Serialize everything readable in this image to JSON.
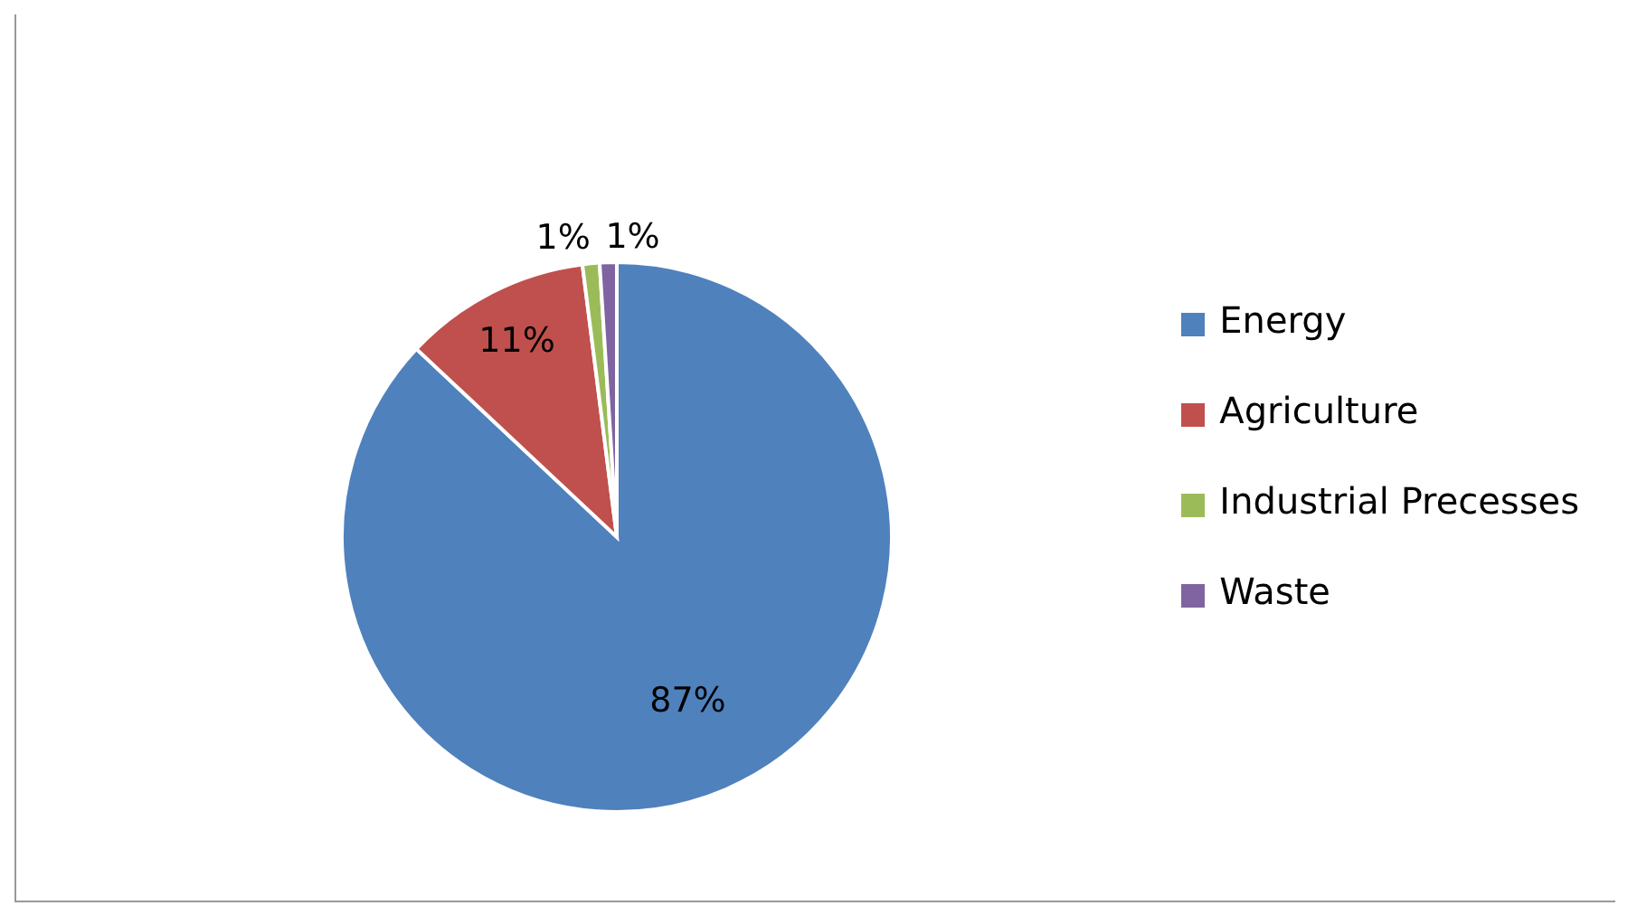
{
  "chart_data": {
    "type": "pie",
    "categories": [
      "Energy",
      "Agriculture",
      "Industrial Precesses",
      "Waste"
    ],
    "values": [
      87,
      11,
      1,
      1
    ],
    "value_labels": [
      "87%",
      "11%",
      "1%",
      "1%"
    ],
    "colors": [
      "#4f81bd",
      "#c0504d",
      "#9bbb59",
      "#8064a2"
    ],
    "legend": "right"
  }
}
